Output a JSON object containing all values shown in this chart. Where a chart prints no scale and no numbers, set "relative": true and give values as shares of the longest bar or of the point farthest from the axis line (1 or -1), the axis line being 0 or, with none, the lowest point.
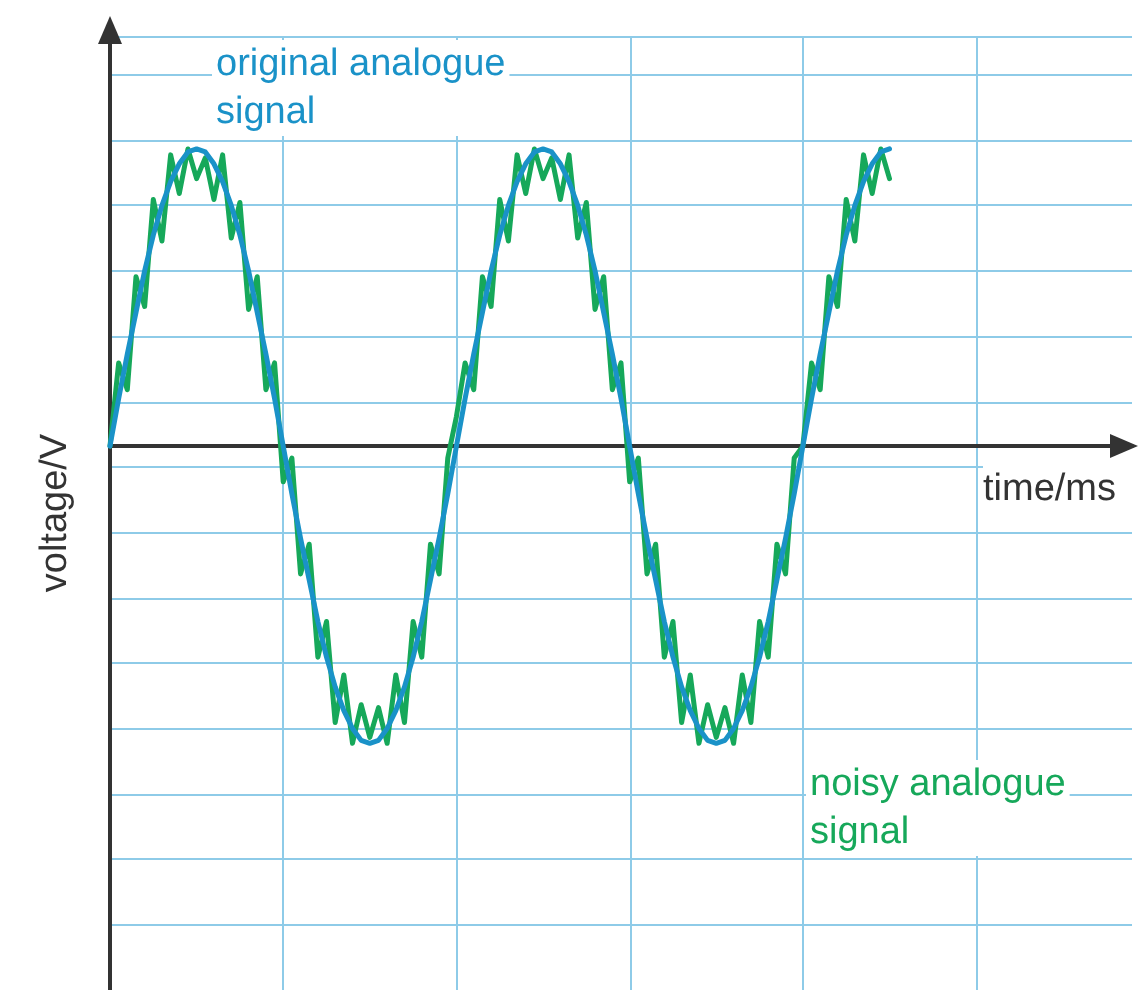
{
  "chart_data": {
    "type": "line",
    "relative": true,
    "xlabel": "time/ms",
    "ylabel": "voltage/V",
    "grid": true,
    "line_style": "solid",
    "categories": [
      null,
      null,
      null,
      null,
      null,
      null,
      null,
      null,
      null,
      null,
      null,
      null,
      null,
      null,
      null,
      null,
      null,
      null,
      null,
      null,
      null,
      null,
      null,
      null,
      null,
      null,
      null,
      null,
      null,
      null,
      null,
      null,
      null,
      null,
      null,
      null,
      null,
      null,
      null,
      null,
      null,
      null,
      null,
      null,
      null,
      null,
      null,
      null,
      null,
      null,
      null,
      null,
      null,
      null,
      null,
      null,
      null,
      null,
      null,
      null,
      null,
      null,
      null,
      null,
      null,
      null,
      null,
      null,
      null,
      null,
      null,
      null,
      null,
      null,
      null,
      null,
      null,
      null,
      null,
      null,
      null,
      null,
      null,
      null,
      null,
      null,
      null,
      null,
      null,
      null,
      null
    ],
    "series": [
      {
        "name": "noisy analogue signal",
        "color": "#16a85a",
        "values": [
          0,
          0.28,
          0.19,
          0.57,
          0.47,
          0.83,
          0.69,
          0.98,
          0.85,
          1,
          0.9,
          0.97,
          0.83,
          0.98,
          0.7,
          0.82,
          0.46,
          0.57,
          0.19,
          0.28,
          -0.12,
          -0.04,
          -0.43,
          -0.33,
          -0.71,
          -0.59,
          -0.93,
          -0.77,
          -1,
          -0.87,
          -0.98,
          -0.88,
          -1,
          -0.77,
          -0.93,
          -0.59,
          -0.71,
          -0.33,
          -0.43,
          -0.04,
          0.1,
          0.28,
          0.19,
          0.57,
          0.47,
          0.83,
          0.69,
          0.98,
          0.85,
          1,
          0.9,
          0.97,
          0.83,
          0.98,
          0.7,
          0.82,
          0.46,
          0.57,
          0.19,
          0.28,
          -0.12,
          -0.04,
          -0.43,
          -0.33,
          -0.71,
          -0.59,
          -0.93,
          -0.77,
          -1,
          -0.87,
          -0.98,
          -0.88,
          -1,
          -0.77,
          -0.93,
          -0.59,
          -0.71,
          -0.33,
          -0.43,
          -0.04,
          0,
          0.28,
          0.19,
          0.57,
          0.47,
          0.83,
          0.69,
          0.98,
          0.85,
          1,
          0.9
        ]
      },
      {
        "name": "original analogue signal",
        "color": "#1a92c8",
        "values": [
          0,
          0.16,
          0.31,
          0.45,
          0.59,
          0.71,
          0.81,
          0.89,
          0.95,
          0.99,
          1,
          0.99,
          0.95,
          0.89,
          0.81,
          0.71,
          0.59,
          0.45,
          0.31,
          0.16,
          0,
          -0.16,
          -0.31,
          -0.45,
          -0.59,
          -0.71,
          -0.81,
          -0.89,
          -0.95,
          -0.99,
          -1,
          -0.99,
          -0.95,
          -0.89,
          -0.81,
          -0.71,
          -0.59,
          -0.45,
          -0.31,
          -0.16,
          0,
          0.16,
          0.31,
          0.45,
          0.59,
          0.71,
          0.81,
          0.89,
          0.95,
          0.99,
          1,
          0.99,
          0.95,
          0.89,
          0.81,
          0.71,
          0.59,
          0.45,
          0.31,
          0.16,
          0,
          -0.16,
          -0.31,
          -0.45,
          -0.59,
          -0.71,
          -0.81,
          -0.89,
          -0.95,
          -0.99,
          -1,
          -0.99,
          -0.95,
          -0.89,
          -0.81,
          -0.71,
          -0.59,
          -0.45,
          -0.31,
          -0.16,
          0,
          0.16,
          0.31,
          0.45,
          0.59,
          0.71,
          0.81,
          0.89,
          0.95,
          0.99,
          1
        ]
      }
    ]
  }
}
